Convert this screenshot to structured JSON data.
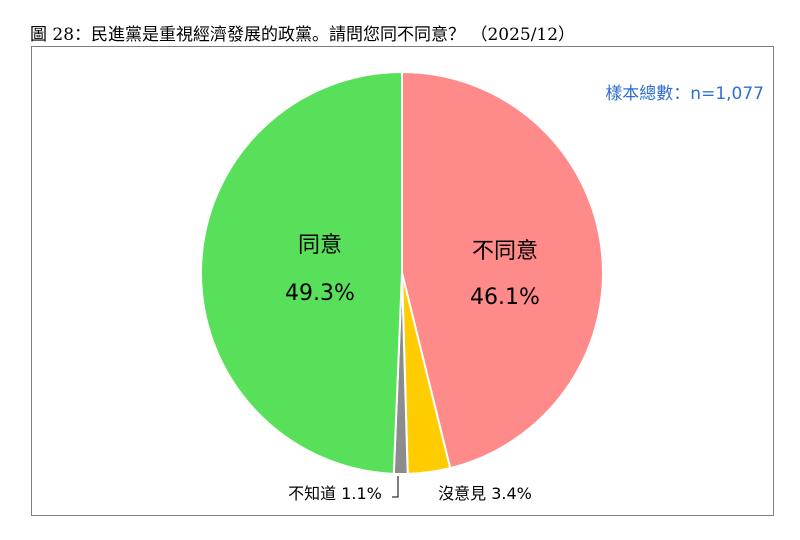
{
  "title": "圖 28：民進黨是重視經濟發展的政黨。請問您同不同意？ （2025/12）",
  "sample_note": "樣本總數：n=1,077",
  "chart_data": {
    "type": "pie",
    "slices": [
      {
        "name": "不同意",
        "value": 46.1,
        "label": "46.1%",
        "color": "#ff8a8a"
      },
      {
        "name": "沒意見",
        "value": 3.4,
        "label": "3.4%",
        "color": "#ffcc00"
      },
      {
        "name": "不知道",
        "value": 1.1,
        "label": "1.1%",
        "color": "#8c8c8c"
      },
      {
        "name": "同意",
        "value": 49.3,
        "label": "49.3%",
        "color": "#58e05a"
      }
    ],
    "start_angle": "12 o'clock",
    "direction": "clockwise",
    "outside_labels": [
      {
        "text": "不知道 1.1%"
      },
      {
        "text": "沒意見 3.4%"
      }
    ]
  }
}
